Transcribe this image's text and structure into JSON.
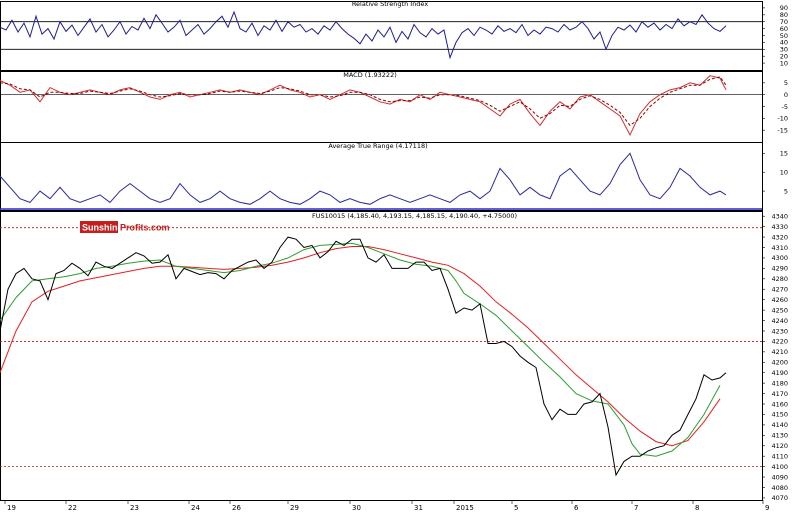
{
  "brand": {
    "part1": "Sunshine",
    "part2": "Profits.com"
  },
  "colors": {
    "frame": "#000000",
    "price": "#000000",
    "rsi": "#1f1f8f",
    "macd": "#d03030",
    "macd_signal": "#8b0000",
    "atr": "#2a2aa0",
    "sma_short": "#2e9e2e",
    "sma_long": "#e02020",
    "guide": "#c01818",
    "brand_bg": "#c41e1e"
  },
  "chart_data": [
    {
      "type": "line",
      "panel": "rsi",
      "title": "Relative Strength Index",
      "ylim": [
        0,
        100
      ],
      "yticks": [
        "90",
        "80",
        "70",
        "60",
        "50",
        "40",
        "30",
        "20",
        "10"
      ],
      "reference_lines": [
        70,
        30
      ],
      "x": [
        0,
        6,
        12,
        18,
        24,
        30,
        36,
        42,
        48,
        54,
        60,
        66,
        72,
        78,
        84,
        90,
        96,
        102,
        108,
        114,
        120,
        126,
        132,
        138,
        144,
        150,
        156,
        162,
        168,
        174,
        180,
        186,
        192,
        198,
        204,
        210,
        216,
        222,
        228,
        234,
        240,
        246,
        252,
        258,
        264,
        270,
        276,
        282,
        288,
        294,
        300,
        306,
        312,
        318,
        324,
        330,
        336,
        342,
        348,
        354,
        360,
        366,
        372,
        378,
        384,
        390,
        396,
        402,
        408,
        414,
        420,
        426,
        432,
        438,
        444,
        450,
        456,
        462,
        468,
        474,
        480,
        486,
        492,
        498,
        504,
        510,
        516,
        522,
        528,
        534,
        540,
        546,
        552,
        558,
        564,
        570,
        576,
        582,
        588,
        594,
        600,
        606,
        612,
        618,
        624,
        630,
        636,
        642,
        648,
        654,
        660,
        666,
        672,
        678,
        684,
        690,
        696,
        702,
        708,
        714,
        720,
        726
      ],
      "values": [
        62,
        58,
        72,
        55,
        68,
        48,
        78,
        52,
        60,
        45,
        70,
        56,
        65,
        50,
        62,
        74,
        55,
        66,
        48,
        58,
        70,
        52,
        63,
        58,
        75,
        60,
        80,
        68,
        55,
        62,
        72,
        50,
        58,
        66,
        52,
        60,
        70,
        78,
        62,
        84,
        60,
        55,
        68,
        50,
        64,
        58,
        72,
        56,
        70,
        62,
        66,
        55,
        60,
        52,
        64,
        58,
        70,
        60,
        52,
        46,
        38,
        52,
        42,
        58,
        48,
        62,
        40,
        56,
        45,
        66,
        54,
        48,
        60,
        52,
        58,
        18,
        40,
        54,
        60,
        50,
        62,
        58,
        52,
        64,
        56,
        60,
        54,
        66,
        50,
        58,
        52,
        62,
        60,
        55,
        66,
        58,
        62,
        70,
        60,
        45,
        55,
        30,
        50,
        62,
        58,
        65,
        55,
        70,
        62,
        68,
        58,
        66,
        60,
        74,
        64,
        70,
        66,
        80,
        68,
        60,
        56,
        64
      ]
    },
    {
      "type": "line",
      "panel": "macd",
      "title": "MACD (1.93222)",
      "ylim": [
        -20,
        10
      ],
      "yticks": [
        "5",
        "0",
        "-5",
        "-10",
        "-15"
      ],
      "series": [
        {
          "role": "macd",
          "x": [
            0,
            10,
            20,
            30,
            40,
            50,
            60,
            70,
            80,
            90,
            100,
            110,
            120,
            130,
            140,
            150,
            160,
            170,
            180,
            190,
            200,
            210,
            220,
            230,
            240,
            250,
            260,
            270,
            280,
            290,
            300,
            310,
            320,
            330,
            340,
            350,
            360,
            370,
            380,
            390,
            400,
            410,
            420,
            430,
            440,
            450,
            460,
            470,
            480,
            490,
            500,
            510,
            520,
            530,
            540,
            550,
            560,
            570,
            580,
            590,
            600,
            610,
            620,
            630,
            640,
            650,
            660,
            670,
            680,
            690,
            700,
            710,
            720,
            726
          ],
          "values": [
            6,
            4,
            1,
            2,
            -3,
            3,
            1,
            0,
            1,
            2,
            1,
            0,
            2,
            3,
            1,
            -1,
            -2,
            0,
            1,
            -1,
            0,
            1,
            2,
            1,
            2,
            1,
            0,
            2,
            4,
            2,
            1,
            -1,
            0,
            -2,
            0,
            2,
            1,
            -1,
            -3,
            -4,
            -2,
            -3,
            0,
            -2,
            1,
            0,
            -1,
            -2,
            -3,
            -6,
            -9,
            -4,
            -2,
            -8,
            -13,
            -7,
            -3,
            -6,
            -1,
            0,
            -3,
            -6,
            -9,
            -17,
            -8,
            -3,
            0,
            2,
            3,
            5,
            4,
            8,
            7,
            2
          ]
        },
        {
          "role": "signal",
          "x": [
            0,
            10,
            20,
            30,
            40,
            50,
            60,
            70,
            80,
            90,
            100,
            110,
            120,
            130,
            140,
            150,
            160,
            170,
            180,
            190,
            200,
            210,
            220,
            230,
            240,
            250,
            260,
            270,
            280,
            290,
            300,
            310,
            320,
            330,
            340,
            350,
            360,
            370,
            380,
            390,
            400,
            410,
            420,
            430,
            440,
            450,
            460,
            470,
            480,
            490,
            500,
            510,
            520,
            530,
            540,
            550,
            560,
            570,
            580,
            590,
            600,
            610,
            620,
            630,
            640,
            650,
            660,
            670,
            680,
            690,
            700,
            710,
            720,
            726
          ],
          "values": [
            5,
            4.5,
            2.5,
            2,
            -1,
            1,
            1,
            0.5,
            0.5,
            1.5,
            1,
            0.5,
            1.5,
            2.5,
            1.5,
            0,
            -1,
            -0.5,
            0.5,
            0,
            0,
            0.5,
            1.5,
            1,
            1.5,
            1,
            0.5,
            1.5,
            3,
            2.5,
            1.5,
            0,
            0,
            -1,
            -0.5,
            1,
            1,
            0,
            -2,
            -3,
            -2.5,
            -2.5,
            -1,
            -1.5,
            0,
            0,
            -0.5,
            -1.5,
            -2.5,
            -4.5,
            -7,
            -5,
            -3,
            -6,
            -10,
            -8,
            -4.5,
            -5,
            -2,
            -0.5,
            -2,
            -4.5,
            -7.5,
            -13,
            -10,
            -5,
            -1.5,
            1,
            2.5,
            4,
            4,
            6.5,
            7.5,
            4
          ]
        }
      ]
    },
    {
      "type": "line",
      "panel": "atr",
      "title": "Average True Range (4.17118)",
      "ylim": [
        0,
        18
      ],
      "yticks": [
        "15",
        "10",
        "5",
        "0"
      ],
      "reference_lines": [
        0
      ],
      "x": [
        0,
        10,
        20,
        30,
        40,
        50,
        60,
        70,
        80,
        90,
        100,
        110,
        120,
        130,
        140,
        150,
        160,
        170,
        180,
        190,
        200,
        210,
        220,
        230,
        240,
        250,
        260,
        270,
        280,
        290,
        300,
        310,
        320,
        330,
        340,
        350,
        360,
        370,
        380,
        390,
        400,
        410,
        420,
        430,
        440,
        450,
        460,
        470,
        480,
        490,
        500,
        510,
        520,
        530,
        540,
        550,
        560,
        570,
        580,
        590,
        600,
        610,
        620,
        630,
        640,
        650,
        660,
        670,
        680,
        690,
        700,
        710,
        720,
        726
      ],
      "values": [
        9,
        6,
        3,
        2,
        5,
        3,
        6,
        3,
        2,
        3,
        4,
        2,
        5,
        7,
        5,
        3,
        2,
        3,
        7,
        4,
        2,
        3,
        5,
        3,
        2,
        1.5,
        3,
        5,
        3,
        2,
        1.5,
        3,
        5,
        4,
        2,
        3,
        2,
        1.5,
        3,
        4,
        3,
        2,
        3,
        4,
        3,
        2,
        4,
        5,
        3,
        5,
        11,
        8,
        4,
        6,
        4,
        3,
        9,
        11,
        8,
        5,
        4,
        7,
        12,
        15,
        8,
        4,
        3,
        6,
        11,
        9,
        6,
        4,
        5,
        4
      ]
    },
    {
      "type": "line",
      "panel": "price",
      "title": "FUS10015 (4,185.40, 4,193.15, 4,185.15, 4,190.40, +4.75000)",
      "ylim": [
        4068,
        4345
      ],
      "yticks": [
        "4340",
        "4330",
        "4320",
        "4310",
        "4300",
        "4290",
        "4280",
        "4270",
        "4260",
        "4250",
        "4240",
        "4230",
        "4220",
        "4210",
        "4200",
        "4190",
        "4180",
        "4170",
        "4160",
        "4150",
        "4140",
        "4130",
        "4120",
        "4110",
        "4100",
        "4090",
        "4080",
        "4070"
      ],
      "reference_lines": [
        4329,
        4220,
        4100
      ],
      "xticks": [
        {
          "x": 5,
          "label": "19"
        },
        {
          "x": 66,
          "label": "22"
        },
        {
          "x": 128,
          "label": "23"
        },
        {
          "x": 189,
          "label": "24"
        },
        {
          "x": 230,
          "label": "26"
        },
        {
          "x": 288,
          "label": "29"
        },
        {
          "x": 350,
          "label": "30"
        },
        {
          "x": 412,
          "label": "31"
        },
        {
          "x": 454,
          "label": "2015"
        },
        {
          "x": 512,
          "label": "5"
        },
        {
          "x": 572,
          "label": "6"
        },
        {
          "x": 632,
          "label": "7"
        },
        {
          "x": 693,
          "label": "8"
        },
        {
          "x": 763,
          "label": "9"
        }
      ],
      "series": [
        {
          "role": "price",
          "x": [
            0,
            8,
            16,
            24,
            32,
            40,
            48,
            56,
            64,
            72,
            80,
            88,
            96,
            104,
            112,
            120,
            128,
            136,
            144,
            152,
            160,
            168,
            176,
            184,
            192,
            200,
            208,
            216,
            224,
            232,
            240,
            248,
            256,
            264,
            272,
            280,
            288,
            296,
            304,
            312,
            320,
            328,
            336,
            344,
            352,
            360,
            368,
            376,
            384,
            392,
            400,
            408,
            416,
            424,
            432,
            440,
            448,
            456,
            464,
            472,
            480,
            488,
            496,
            504,
            512,
            520,
            528,
            536,
            544,
            552,
            560,
            568,
            576,
            584,
            592,
            600,
            608,
            616,
            624,
            632,
            640,
            648,
            656,
            664,
            672,
            680,
            688,
            696,
            704,
            712,
            720,
            726
          ],
          "values": [
            4230,
            4270,
            4285,
            4290,
            4280,
            4278,
            4260,
            4285,
            4288,
            4295,
            4290,
            4283,
            4296,
            4292,
            4290,
            4295,
            4300,
            4305,
            4302,
            4295,
            4296,
            4303,
            4280,
            4290,
            4287,
            4284,
            4286,
            4285,
            4280,
            4288,
            4292,
            4296,
            4298,
            4290,
            4296,
            4310,
            4320,
            4318,
            4310,
            4312,
            4300,
            4306,
            4316,
            4312,
            4318,
            4318,
            4300,
            4296,
            4303,
            4290,
            4290,
            4290,
            4296,
            4296,
            4288,
            4290,
            4270,
            4247,
            4252,
            4250,
            4256,
            4218,
            4218,
            4220,
            4215,
            4206,
            4200,
            4195,
            4160,
            4145,
            4155,
            4150,
            4150,
            4160,
            4162,
            4170,
            4138,
            4092,
            4105,
            4110,
            4110,
            4115,
            4118,
            4120,
            4130,
            4135,
            4150,
            4165,
            4188,
            4183,
            4185,
            4190
          ]
        },
        {
          "role": "sma_short",
          "x": [
            0,
            16,
            32,
            48,
            64,
            80,
            96,
            112,
            128,
            144,
            160,
            176,
            192,
            208,
            224,
            240,
            256,
            272,
            288,
            304,
            320,
            336,
            352,
            368,
            384,
            400,
            416,
            432,
            448,
            456,
            464,
            480,
            496,
            512,
            528,
            544,
            560,
            576,
            592,
            608,
            624,
            632,
            640,
            656,
            672,
            688,
            704,
            720
          ],
          "values": [
            4240,
            4262,
            4278,
            4280,
            4282,
            4285,
            4290,
            4292,
            4295,
            4297,
            4298,
            4292,
            4290,
            4288,
            4286,
            4288,
            4292,
            4295,
            4300,
            4308,
            4312,
            4313,
            4314,
            4310,
            4304,
            4298,
            4294,
            4292,
            4288,
            4278,
            4266,
            4256,
            4245,
            4230,
            4215,
            4200,
            4186,
            4170,
            4163,
            4160,
            4140,
            4122,
            4112,
            4110,
            4115,
            4128,
            4150,
            4178
          ]
        },
        {
          "role": "sma_long",
          "x": [
            0,
            16,
            32,
            48,
            64,
            80,
            96,
            112,
            128,
            144,
            160,
            176,
            192,
            208,
            224,
            240,
            256,
            272,
            288,
            304,
            320,
            336,
            352,
            368,
            384,
            400,
            416,
            432,
            448,
            464,
            480,
            496,
            512,
            528,
            544,
            560,
            576,
            592,
            608,
            624,
            640,
            656,
            672,
            688,
            704,
            720
          ],
          "values": [
            4190,
            4230,
            4258,
            4268,
            4273,
            4278,
            4281,
            4284,
            4287,
            4290,
            4292,
            4292,
            4291,
            4290,
            4289,
            4290,
            4291,
            4293,
            4296,
            4300,
            4305,
            4309,
            4311,
            4311,
            4308,
            4304,
            4300,
            4296,
            4293,
            4285,
            4273,
            4258,
            4246,
            4233,
            4218,
            4203,
            4188,
            4175,
            4162,
            4147,
            4134,
            4124,
            4120,
            4125,
            4143,
            4165
          ]
        }
      ]
    }
  ]
}
